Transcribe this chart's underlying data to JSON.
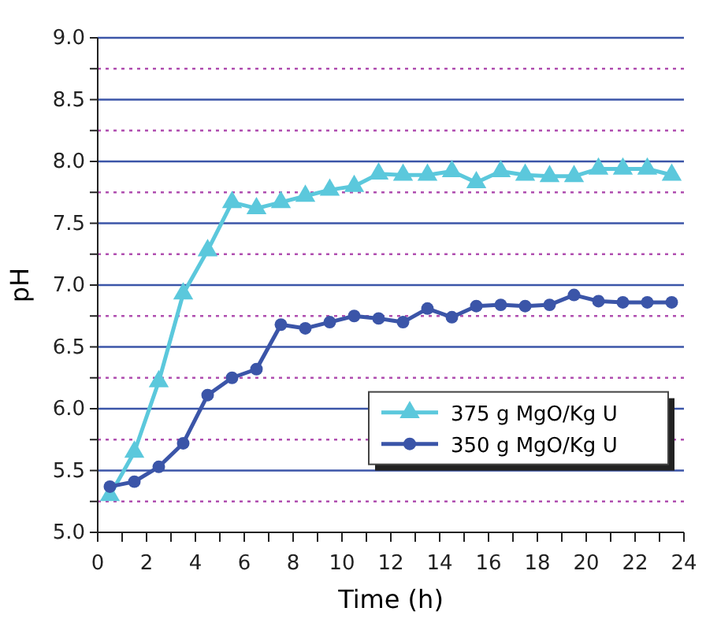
{
  "chart_data": {
    "type": "line",
    "xlabel": "Time (h)",
    "ylabel": "pH",
    "x": [
      0.5,
      1.5,
      2.5,
      3.5,
      4.5,
      5.5,
      6.5,
      7.5,
      8.5,
      9.5,
      10.5,
      11.5,
      12.5,
      13.5,
      14.5,
      15.5,
      16.5,
      17.5,
      18.5,
      19.5,
      20.5,
      21.5,
      22.5,
      23.5
    ],
    "series": [
      {
        "name": "375 g MgO/Kg U",
        "color": "#5bc8dc",
        "marker": "triangle",
        "values": [
          5.3,
          5.65,
          6.22,
          6.93,
          7.28,
          7.67,
          7.62,
          7.67,
          7.72,
          7.77,
          7.8,
          7.9,
          7.89,
          7.89,
          7.92,
          7.83,
          7.92,
          7.89,
          7.88,
          7.88,
          7.94,
          7.94,
          7.94,
          7.89
        ]
      },
      {
        "name": "350 g MgO/Kg U",
        "color": "#3b55a8",
        "marker": "circle",
        "values": [
          5.37,
          5.41,
          5.53,
          5.72,
          6.11,
          6.25,
          6.32,
          6.68,
          6.65,
          6.7,
          6.75,
          6.73,
          6.7,
          6.81,
          6.74,
          6.83,
          6.84,
          6.83,
          6.84,
          6.92,
          6.87,
          6.86,
          6.86,
          6.86
        ]
      }
    ],
    "xlim": [
      0,
      24
    ],
    "xticks": [
      0,
      {
        "value": 1,
        "label": null
      },
      2,
      {
        "value": 3,
        "label": null
      },
      4,
      {
        "value": 5,
        "label": null
      },
      6,
      {
        "value": 7,
        "label": null
      },
      8,
      {
        "value": 9,
        "label": null
      },
      10,
      {
        "value": 11,
        "label": null
      },
      12,
      {
        "value": 13,
        "label": null
      },
      14,
      {
        "value": 15,
        "label": null
      },
      16,
      {
        "value": 17,
        "label": null
      },
      18,
      {
        "value": 19,
        "label": null
      },
      20,
      {
        "value": 21,
        "label": null
      },
      22,
      {
        "value": 23,
        "label": null
      },
      24
    ],
    "ylim": [
      5,
      9
    ],
    "yticks": [
      {
        "value": 5,
        "label": "5.0"
      },
      {
        "value": 5.25,
        "label": null
      },
      5.5,
      {
        "value": 5.75,
        "label": null
      },
      {
        "value": 6,
        "label": "6.0"
      },
      {
        "value": 6.25,
        "label": null
      },
      6.5,
      {
        "value": 6.75,
        "label": null
      },
      {
        "value": 7,
        "label": "7.0"
      },
      {
        "value": 7.25,
        "label": null
      },
      7.5,
      {
        "value": 7.75,
        "label": null
      },
      {
        "value": 8,
        "label": "8.0"
      },
      {
        "value": 8.25,
        "label": null
      },
      8.5,
      {
        "value": 8.75,
        "label": null
      },
      {
        "value": 9,
        "label": "9.0"
      }
    ],
    "grid": "y",
    "legend": "bottom right"
  }
}
